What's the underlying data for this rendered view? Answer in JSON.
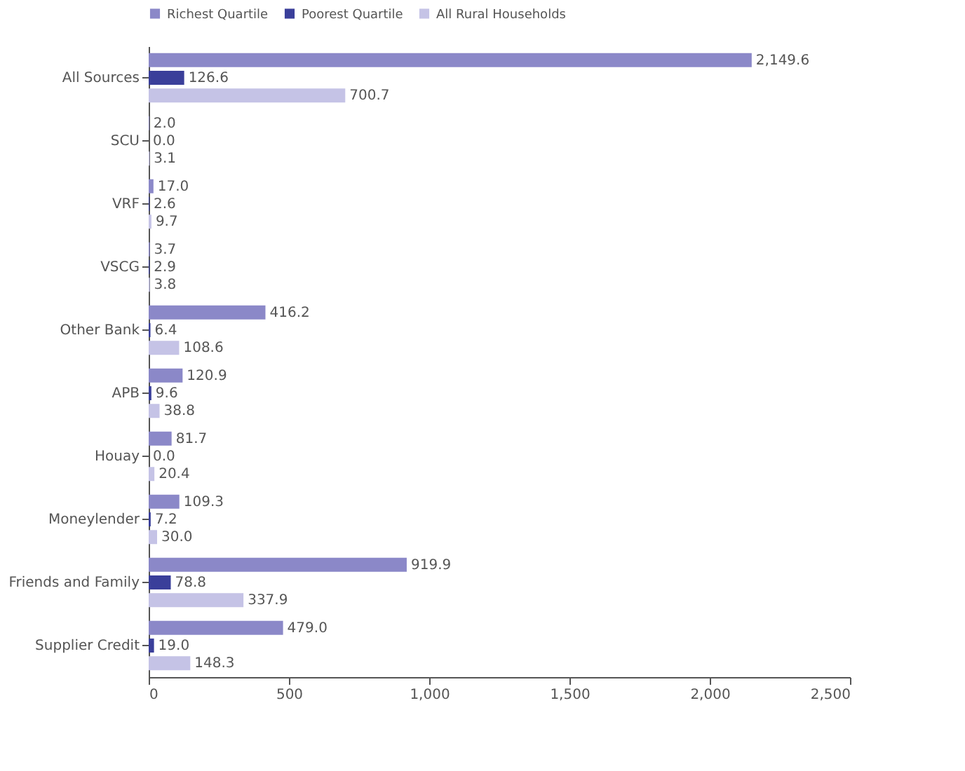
{
  "chart_data": {
    "type": "bar",
    "orientation": "horizontal",
    "categories": [
      "All Sources",
      "SCU",
      "VRF",
      "VSCG",
      "Other Bank",
      "APB",
      "Houay",
      "Moneylender",
      "Friends and Family",
      "Supplier Credit"
    ],
    "series": [
      {
        "name": "Richest Quartile",
        "color": "#8b88c8",
        "values": [
          2149.6,
          2.0,
          17.0,
          3.7,
          416.2,
          120.9,
          81.7,
          109.3,
          919.9,
          479.0
        ],
        "value_labels": [
          "2,149.6",
          "2.0",
          "17.0",
          "3.7",
          "416.2",
          "120.9",
          "81.7",
          "109.3",
          "919.9",
          "479.0"
        ]
      },
      {
        "name": "Poorest Quartile",
        "color": "#3a3f9a",
        "values": [
          126.6,
          0.0,
          2.6,
          2.9,
          6.4,
          9.6,
          0.0,
          7.2,
          78.8,
          19.0
        ],
        "value_labels": [
          "126.6",
          "0.0",
          "2.6",
          "2.9",
          "6.4",
          "9.6",
          "0.0",
          "7.2",
          "78.8",
          "19.0"
        ]
      },
      {
        "name": "All Rural Households",
        "color": "#c5c3e6",
        "values": [
          700.7,
          3.1,
          9.7,
          3.8,
          108.6,
          38.8,
          20.4,
          30.0,
          337.9,
          148.3
        ],
        "value_labels": [
          "700.7",
          "3.1",
          "9.7",
          "3.8",
          "108.6",
          "38.8",
          "20.4",
          "30.0",
          "337.9",
          "148.3"
        ]
      }
    ],
    "xlim": [
      0,
      2500
    ],
    "xticks": [
      0,
      500,
      {
        "value": 1000,
        "label": "1,000"
      },
      {
        "value": 1500,
        "label": "1,500"
      },
      {
        "value": 2000,
        "label": "2,000"
      },
      {
        "value": 2500,
        "label": "2,500"
      }
    ],
    "legend": "top",
    "grid": false
  }
}
